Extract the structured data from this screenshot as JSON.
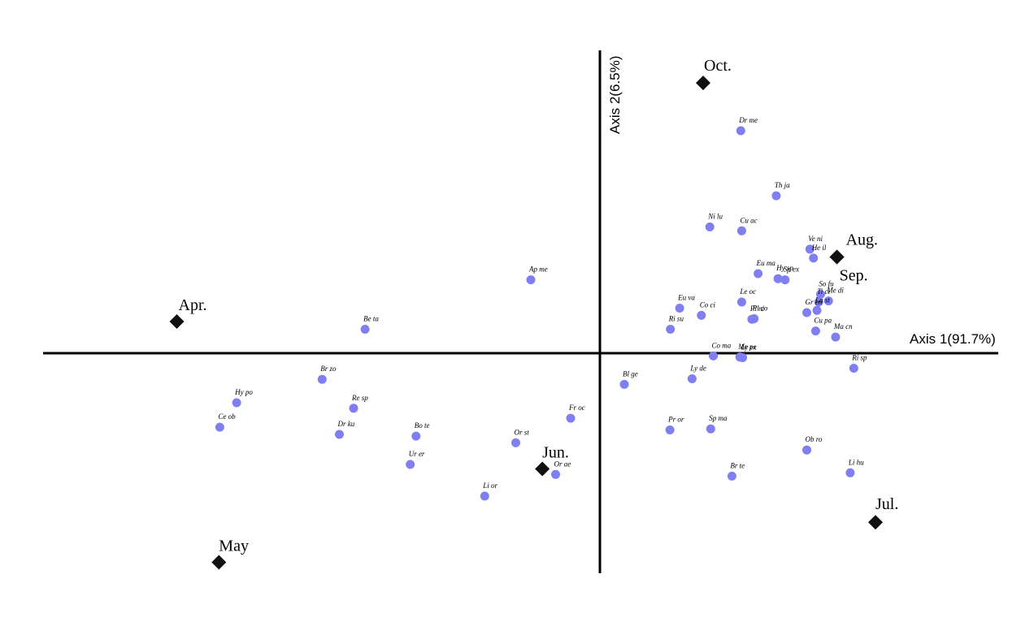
{
  "chart_data": {
    "type": "scatter",
    "axes": {
      "x_label": "Axis 1(91.7%)",
      "y_label": "Axis 2(6.5%)"
    },
    "xlim": [
      -1.0,
      0.75
    ],
    "ylim": [
      -0.41,
      0.55
    ],
    "grid": false,
    "colors": {
      "species": "#7f7ff2",
      "month": "#111111",
      "axis": "#000000"
    },
    "months": [
      {
        "label": "Apr.",
        "x": -0.955,
        "y": 0.057
      },
      {
        "label": "May",
        "x": -0.86,
        "y": -0.376
      },
      {
        "label": "Jun.",
        "x": -0.13,
        "y": -0.208
      },
      {
        "label": "Jul.",
        "x": 0.622,
        "y": -0.304
      },
      {
        "label": "Aug.",
        "x": 0.535,
        "y": 0.173
      },
      {
        "label": "Sep.",
        "x": 0.535,
        "y": 0.173
      },
      {
        "label": "Oct.",
        "x": 0.233,
        "y": 0.486
      }
    ],
    "species": [
      {
        "label": "Dr me",
        "x": 0.318,
        "y": 0.4
      },
      {
        "label": "Th ja",
        "x": 0.398,
        "y": 0.283
      },
      {
        "label": "Ni lu",
        "x": 0.248,
        "y": 0.227
      },
      {
        "label": "Cu ac",
        "x": 0.32,
        "y": 0.22
      },
      {
        "label": "Ve ni",
        "x": 0.474,
        "y": 0.187
      },
      {
        "label": "He il",
        "x": 0.482,
        "y": 0.171
      },
      {
        "label": "Eu ma",
        "x": 0.357,
        "y": 0.143
      },
      {
        "label": "Hy sp",
        "x": 0.402,
        "y": 0.134
      },
      {
        "label": "Sp ex",
        "x": 0.418,
        "y": 0.132
      },
      {
        "label": "So fu",
        "x": 0.498,
        "y": 0.106
      },
      {
        "label": "Me di",
        "x": 0.516,
        "y": 0.094
      },
      {
        "label": "Ti ci",
        "x": 0.494,
        "y": 0.092
      },
      {
        "label": "La st",
        "x": 0.49,
        "y": 0.077
      },
      {
        "label": "Gr en",
        "x": 0.467,
        "y": 0.073
      },
      {
        "label": "Le oc",
        "x": 0.32,
        "y": 0.092
      },
      {
        "label": "Pl co",
        "x": 0.348,
        "y": 0.062
      },
      {
        "label": "Pl ni",
        "x": 0.343,
        "y": 0.061
      },
      {
        "label": "Eu va",
        "x": 0.18,
        "y": 0.081
      },
      {
        "label": "Co ci",
        "x": 0.229,
        "y": 0.068
      },
      {
        "label": "Ri su",
        "x": 0.159,
        "y": 0.043
      },
      {
        "label": "Cu pa",
        "x": 0.487,
        "y": 0.04
      },
      {
        "label": "Ma cn",
        "x": 0.532,
        "y": 0.029
      },
      {
        "label": "Co ma",
        "x": 0.256,
        "y": -0.005
      },
      {
        "label": "Me pe",
        "x": 0.316,
        "y": -0.007
      },
      {
        "label": "Ly ex",
        "x": 0.322,
        "y": -0.008
      },
      {
        "label": "Ri sp",
        "x": 0.573,
        "y": -0.027
      },
      {
        "label": "Bl ge",
        "x": 0.055,
        "y": -0.056
      },
      {
        "label": "Ly de",
        "x": 0.208,
        "y": -0.046
      },
      {
        "label": "Pr or",
        "x": 0.158,
        "y": -0.138
      },
      {
        "label": "Sp ma",
        "x": 0.25,
        "y": -0.136
      },
      {
        "label": "Ob ro",
        "x": 0.467,
        "y": -0.174
      },
      {
        "label": "Br te",
        "x": 0.298,
        "y": -0.221
      },
      {
        "label": "Li hu",
        "x": 0.565,
        "y": -0.215
      },
      {
        "label": "Ap me",
        "x": -0.156,
        "y": 0.132
      },
      {
        "label": "Be ta",
        "x": -0.53,
        "y": 0.043
      },
      {
        "label": "Br zo",
        "x": -0.627,
        "y": -0.047
      },
      {
        "label": "Hy po",
        "x": -0.82,
        "y": -0.089
      },
      {
        "label": "Re sp",
        "x": -0.556,
        "y": -0.099
      },
      {
        "label": "Ce ob",
        "x": -0.858,
        "y": -0.133
      },
      {
        "label": "Dr ku",
        "x": -0.588,
        "y": -0.146
      },
      {
        "label": "Bo te",
        "x": -0.415,
        "y": -0.149
      },
      {
        "label": "Ur er",
        "x": -0.428,
        "y": -0.2
      },
      {
        "label": "Or st",
        "x": -0.19,
        "y": -0.161
      },
      {
        "label": "Fr oc",
        "x": -0.066,
        "y": -0.117
      },
      {
        "label": "Or ae",
        "x": -0.1,
        "y": -0.218
      },
      {
        "label": "Li or",
        "x": -0.26,
        "y": -0.257
      }
    ]
  }
}
